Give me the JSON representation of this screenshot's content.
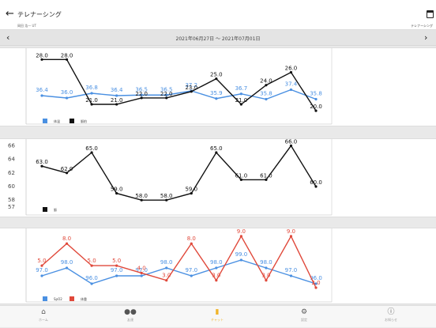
{
  "header": {
    "title": "テレナーシング",
    "user": "岡田 浩一 UT",
    "right_label": "テレナーシング"
  },
  "date_bar": {
    "range": "2021年06月27日 〜 2021年07月01日"
  },
  "colors": {
    "blue": "#4a90e2",
    "black": "#111111",
    "red": "#e0493b",
    "active": "#f0b429"
  },
  "legends": {
    "c1": [
      "体温",
      "脈拍"
    ],
    "c2": [
      "脈"
    ],
    "c3": [
      "SpO2",
      "体重"
    ]
  },
  "chart_data": [
    {
      "type": "line",
      "series": [
        {
          "name": "体温",
          "color": "#4a90e2",
          "values": [
            36.4,
            36.0,
            36.8,
            36.4,
            36.5,
            36.5,
            37.2,
            35.9,
            36.7,
            35.8,
            37.4,
            35.8
          ],
          "labels": [
            "36.4",
            "36.0",
            "36.8",
            "36.4",
            "36.5",
            "36.5",
            "37.2",
            "35.9",
            "36.7",
            "35.8",
            "37.4",
            "35.8"
          ]
        },
        {
          "name": "脈拍",
          "color": "#111111",
          "values": [
            28.0,
            28.0,
            21.0,
            21.0,
            22.0,
            22.0,
            23.0,
            25.0,
            21.0,
            24.0,
            26.0,
            20.0
          ],
          "labels": [
            "28.0",
            "28.0",
            "21.0",
            "21.0",
            "22.0",
            "22.0",
            "23.0",
            "25.0",
            "21.0",
            "24.0",
            "26.0",
            "20.0"
          ]
        }
      ]
    },
    {
      "type": "line",
      "yticks": [
        "66",
        "64",
        "62",
        "60",
        "58",
        "57"
      ],
      "series": [
        {
          "name": "脈",
          "color": "#111111",
          "values": [
            63.0,
            62.0,
            65.0,
            59.0,
            58.0,
            58.0,
            59.0,
            65.0,
            61.0,
            61.0,
            66.0,
            60.0
          ],
          "labels": [
            "63.0",
            "62.0",
            "65.0",
            "59.0",
            "58.0",
            "58.0",
            "59.0",
            "65.0",
            "61.0",
            "61.0",
            "66.0",
            "60.0"
          ]
        }
      ]
    },
    {
      "type": "line",
      "series": [
        {
          "name": "SpO2",
          "color": "#4a90e2",
          "values": [
            97.0,
            98.0,
            96.0,
            97.0,
            97.0,
            98.0,
            97.0,
            98.0,
            99.0,
            98.0,
            97.0,
            96.0
          ],
          "labels": [
            "97.0",
            "98.0",
            "96.0",
            "97.0",
            "97.0",
            "98.0",
            "97.0",
            "98.0",
            "99.0",
            "98.0",
            "97.0",
            "96.0"
          ]
        },
        {
          "name": "体重",
          "color": "#e0493b",
          "values": [
            5.0,
            8.0,
            5.0,
            5.0,
            4.0,
            3.0,
            8.0,
            3.0,
            9.0,
            3.0,
            9.0,
            2.0
          ],
          "labels": [
            "5.0",
            "8.0",
            "5.0",
            "5.0",
            "4.0",
            "3.0",
            "8.0",
            "3.0",
            "9.0",
            "3.0",
            "9.0",
            "2.0"
          ]
        }
      ]
    }
  ],
  "tabbar": [
    {
      "label": "ホーム",
      "icon": "home-icon"
    },
    {
      "label": "友達",
      "icon": "friends-icon"
    },
    {
      "label": "チャット",
      "icon": "chat-icon",
      "active": true
    },
    {
      "label": "設定",
      "icon": "gear-icon"
    },
    {
      "label": "お知らせ",
      "icon": "info-icon"
    }
  ]
}
